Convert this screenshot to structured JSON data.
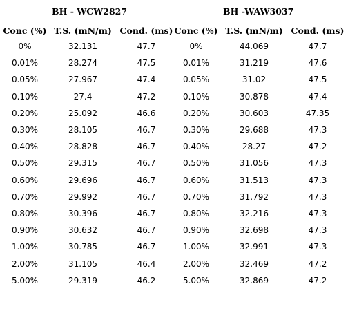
{
  "groups": [
    {
      "title": "BH - WCW2827",
      "headers": [
        "Conc (%)",
        "T.S. (mN/m)",
        "Cond. (ms)"
      ],
      "rows": [
        [
          "0%",
          "32.131",
          "47.7"
        ],
        [
          "0.01%",
          "28.274",
          "47.5"
        ],
        [
          "0.05%",
          "27.967",
          "47.4"
        ],
        [
          "0.10%",
          "27.4",
          "47.2"
        ],
        [
          "0.20%",
          "25.092",
          "46.6"
        ],
        [
          "0.30%",
          "28.105",
          "46.7"
        ],
        [
          "0.40%",
          "28.828",
          "46.7"
        ],
        [
          "0.50%",
          "29.315",
          "46.7"
        ],
        [
          "0.60%",
          "29.696",
          "46.7"
        ],
        [
          "0.70%",
          "29.992",
          "46.7"
        ],
        [
          "0.80%",
          "30.396",
          "46.7"
        ],
        [
          "0.90%",
          "30.632",
          "46.7"
        ],
        [
          "1.00%",
          "30.785",
          "46.7"
        ],
        [
          "2.00%",
          "31.105",
          "46.4"
        ],
        [
          "5.00%",
          "29.319",
          "46.2"
        ]
      ]
    },
    {
      "title": "BH -WAW3037",
      "headers": [
        "Conc (%)",
        "T.S. (mN/m)",
        "Cond. (ms)"
      ],
      "rows": [
        [
          "0%",
          "44.069",
          "47.7"
        ],
        [
          "0.01%",
          "31.219",
          "47.6"
        ],
        [
          "0.05%",
          "31.02",
          "47.5"
        ],
        [
          "0.10%",
          "30.878",
          "47.4"
        ],
        [
          "0.20%",
          "30.603",
          "47.35"
        ],
        [
          "0.30%",
          "29.688",
          "47.3"
        ],
        [
          "0.40%",
          "28.27",
          "47.2"
        ],
        [
          "0.50%",
          "31.056",
          "47.3"
        ],
        [
          "0.60%",
          "31.513",
          "47.3"
        ],
        [
          "0.70%",
          "31.792",
          "47.3"
        ],
        [
          "0.80%",
          "32.216",
          "47.3"
        ],
        [
          "0.90%",
          "32.698",
          "47.3"
        ],
        [
          "1.00%",
          "32.991",
          "47.3"
        ],
        [
          "2.00%",
          "32.469",
          "47.2"
        ],
        [
          "5.00%",
          "32.869",
          "47.2"
        ]
      ]
    }
  ]
}
